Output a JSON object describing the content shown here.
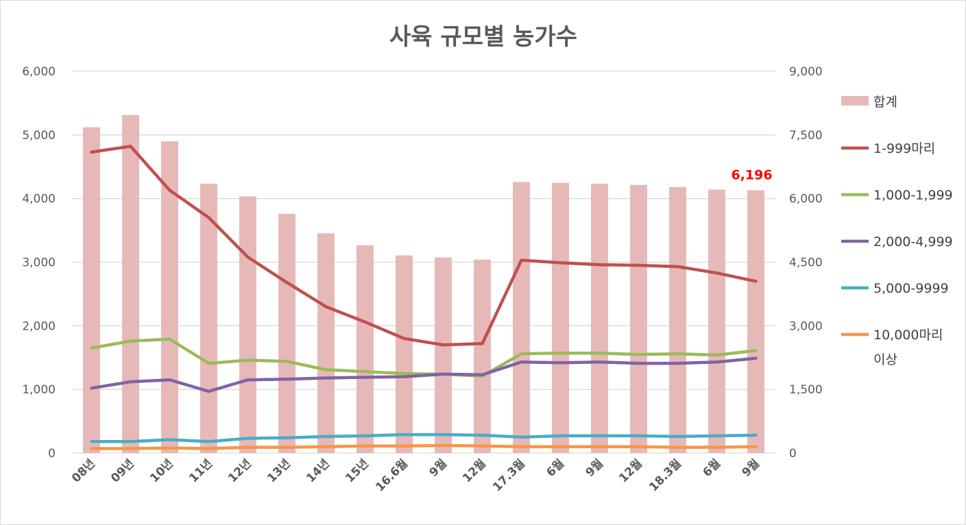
{
  "chart_data": {
    "type": "bar+line",
    "title": "사육 규모별 농가수",
    "categories": [
      "08년",
      "09년",
      "10년",
      "11년",
      "12년",
      "13년",
      "14년",
      "15년",
      "16.6월",
      "9월",
      "12월",
      "17.3월",
      "6월",
      "9월",
      "12월",
      "18.3월",
      "6월",
      "9월"
    ],
    "y_left": {
      "range": [
        0,
        6000
      ],
      "ticks": [
        "0",
        "1,000",
        "2,000",
        "3,000",
        "4,000",
        "5,000",
        "6,000"
      ]
    },
    "y_right": {
      "range": [
        0,
        9000
      ],
      "ticks": [
        "0",
        "1,500",
        "3,000",
        "4,500",
        "6,000",
        "7,500",
        "9,000"
      ]
    },
    "grid": true,
    "legend_position": "right",
    "bars": {
      "name": "합계",
      "axis": "right",
      "color": "#E6B9B8",
      "values": [
        7680,
        7970,
        7350,
        6350,
        6050,
        5640,
        5180,
        4900,
        4660,
        4610,
        4560,
        6390,
        6370,
        6350,
        6320,
        6270,
        6210,
        6196
      ]
    },
    "series": [
      {
        "name": "1-999마리",
        "axis": "left",
        "color": "#C0504D",
        "values": [
          4730,
          4820,
          4130,
          3700,
          3080,
          2680,
          2300,
          2060,
          1800,
          1700,
          1720,
          3030,
          2990,
          2960,
          2950,
          2930,
          2830,
          2700
        ]
      },
      {
        "name": "1,000-1,999",
        "axis": "left",
        "color": "#9BBB59",
        "values": [
          1650,
          1760,
          1790,
          1410,
          1460,
          1440,
          1310,
          1280,
          1250,
          1240,
          1210,
          1560,
          1570,
          1570,
          1550,
          1560,
          1540,
          1610
        ]
      },
      {
        "name": "2,000-4,999",
        "axis": "left",
        "color": "#8064A2",
        "values": [
          1020,
          1120,
          1150,
          970,
          1150,
          1160,
          1180,
          1190,
          1200,
          1240,
          1230,
          1430,
          1420,
          1430,
          1410,
          1410,
          1430,
          1490
        ]
      },
      {
        "name": "5,000-9999",
        "axis": "left",
        "color": "#4BACC6",
        "values": [
          180,
          180,
          210,
          180,
          230,
          240,
          260,
          270,
          290,
          290,
          280,
          250,
          270,
          270,
          270,
          260,
          270,
          280
        ]
      },
      {
        "name": "10,000마리 이상",
        "legend_lines": [
          "10,000마리",
          "이상"
        ],
        "axis": "left",
        "color": "#F79646",
        "values": [
          70,
          70,
          80,
          70,
          90,
          90,
          100,
          110,
          110,
          120,
          110,
          100,
          100,
          100,
          100,
          90,
          90,
          100
        ]
      }
    ],
    "annotation": {
      "text": "6,196",
      "color": "#FF0000",
      "target": "last-bar"
    }
  }
}
